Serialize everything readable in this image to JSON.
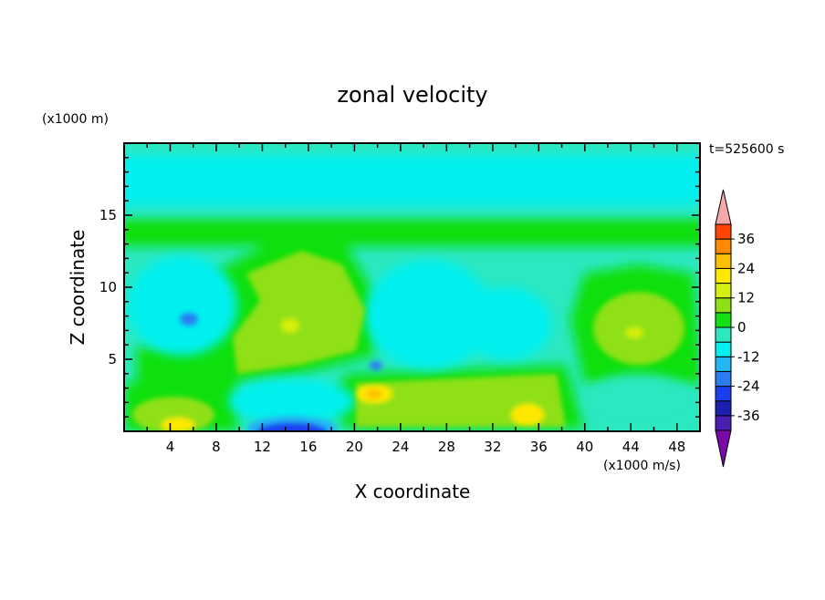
{
  "chart_data": {
    "type": "heatmap",
    "title": "zonal velocity",
    "xlabel": "X coordinate",
    "ylabel": "Z coordinate",
    "x_unit": "(x1000 m/s)",
    "y_unit": "(x1000 m)",
    "time_label": "t=525600 s",
    "xlim": [
      0,
      50
    ],
    "ylim": [
      0,
      20
    ],
    "x_ticks": [
      "4",
      "8",
      "12",
      "16",
      "20",
      "24",
      "28",
      "32",
      "36",
      "40",
      "44",
      "48"
    ],
    "y_ticks": [
      "5",
      "10",
      "15"
    ],
    "colorbar": {
      "levels": [
        -42,
        -36,
        -30,
        -24,
        -18,
        -12,
        -6,
        0,
        6,
        12,
        18,
        24,
        30,
        36,
        42
      ],
      "colors": [
        "#7a0aa8",
        "#4a1db5",
        "#1a1fb0",
        "#1b3ff0",
        "#2a7df2",
        "#23b6f4",
        "#00f0f0",
        "#2ce8c0",
        "#11e011",
        "#8fe012",
        "#d4f010",
        "#ffe800",
        "#ffbf00",
        "#ff8a00",
        "#ff4500",
        "#f01010",
        "#f8a8a8"
      ],
      "tick_labels": [
        "36",
        "24",
        "12",
        "0",
        "-12",
        "-24",
        "-36"
      ],
      "extend": "both"
    },
    "field": [
      {
        "x": 5,
        "z": 0.3,
        "value": 16
      },
      {
        "x": 14,
        "z": 0.4,
        "value": -26
      },
      {
        "x": 22,
        "z": 2.6,
        "value": 15
      },
      {
        "x": 35,
        "z": 1.0,
        "value": 13
      },
      {
        "x": 14,
        "z": 7.5,
        "value": 9
      },
      {
        "x": 45,
        "z": 7.0,
        "value": 9
      },
      {
        "x": 5.5,
        "z": 7.8,
        "value": -14
      },
      {
        "x": 21.5,
        "z": 4.6,
        "value": -15
      },
      {
        "x": 31,
        "z": 7.0,
        "value": -8
      },
      {
        "x": 22,
        "z": 17.5,
        "value": -8
      },
      {
        "x": 25,
        "z": 13.5,
        "value": 3
      }
    ]
  }
}
